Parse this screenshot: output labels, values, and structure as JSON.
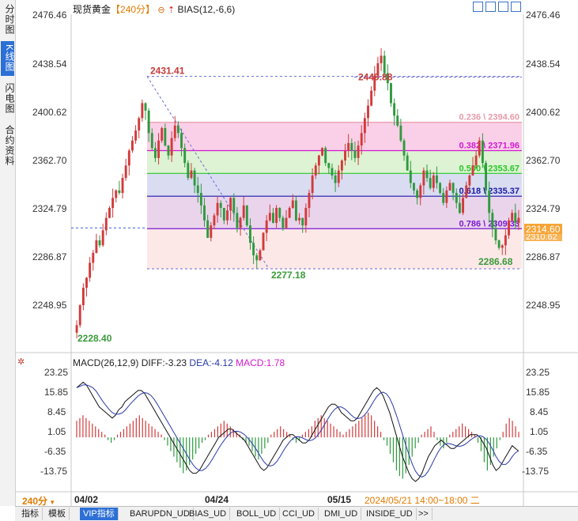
{
  "sidebar": {
    "tabs": [
      {
        "label": "分时图",
        "active": false
      },
      {
        "label": "K线图",
        "active": true
      },
      {
        "label": "闪电图",
        "active": false
      },
      {
        "label": "合约资料",
        "active": false
      }
    ]
  },
  "header": {
    "instrument": "现货黄金",
    "period": "【240分】",
    "indicator": "BIAS(12,-6,6)"
  },
  "price_axis_labels": [
    "2476.46",
    "2438.54",
    "2400.62",
    "2362.70",
    "2324.79",
    "2286.87",
    "2248.95"
  ],
  "price_tags": {
    "last": "2314.60",
    "prev": "2310.62"
  },
  "macd_header": {
    "name": "MACD(26,12,9)",
    "diff": "DIFF:-3.23",
    "dea": "DEA:-4.12",
    "macd": "MACD:1.78"
  },
  "macd_axis_labels": [
    "23.25",
    "15.85",
    "8.45",
    "1.05",
    "-6.35",
    "-13.75"
  ],
  "date_axis": {
    "period_tag": "240分",
    "labels": [
      "04/02",
      "04/24",
      "05/15"
    ],
    "cursor": "2024/05/21 14:00~18:00 二"
  },
  "bottom_tabs": [
    {
      "label": "指标",
      "active": false
    },
    {
      "label": "模板",
      "active": false
    },
    {
      "label": "VIP指标",
      "active": true
    },
    {
      "label": "BARUPDN_UD",
      "active": false
    },
    {
      "label": "BIAS_UD",
      "active": false
    },
    {
      "label": "BOLL_UD",
      "active": false
    },
    {
      "label": "CCI_UD",
      "active": false
    },
    {
      "label": "DMI_UD",
      "active": false
    },
    {
      "label": "INSIDE_UD",
      "active": false
    },
    {
      "label": ">>",
      "active": false
    }
  ],
  "chart_data": {
    "type": "candlestick",
    "price_range": [
      2210,
      2480
    ],
    "annotations": {
      "high_label": "2449.88",
      "prev_high_label": "2431.41",
      "low_label": "2277.18",
      "start_label": "2228.40",
      "recent_low_label": "2286.68"
    },
    "fibonacci": [
      {
        "label": "0.236 \\ 2394.60",
        "value": 2394.6,
        "color": "#e89aa8",
        "fill": "#f9c8e4"
      },
      {
        "label": "0.382 \\ 2371.96",
        "value": 2371.96,
        "color": "#d21ad2",
        "fill": "#d8f0cc"
      },
      {
        "label": "0.500 \\ 2353.67",
        "value": 2353.67,
        "color": "#28c828",
        "fill": "#d4d6f0"
      },
      {
        "label": "0.618 \\ 2335.37",
        "value": 2335.37,
        "color": "#1a1aa8",
        "fill": "#e6cce8"
      },
      {
        "label": "0.786 \\ 2309.33",
        "value": 2309.33,
        "color": "#7a1ad6",
        "fill": "#fde4e4"
      }
    ],
    "fib_top": 2431.41,
    "fib_bottom": 2277.18,
    "close_series": [
      2232,
      2248,
      2262,
      2270,
      2282,
      2290,
      2300,
      2296,
      2308,
      2318,
      2326,
      2334,
      2340,
      2338,
      2350,
      2360,
      2372,
      2380,
      2388,
      2398,
      2410,
      2404,
      2386,
      2374,
      2366,
      2380,
      2390,
      2376,
      2368,
      2382,
      2392,
      2386,
      2374,
      2362,
      2350,
      2356,
      2344,
      2338,
      2328,
      2316,
      2302,
      2312,
      2320,
      2330,
      2326,
      2316,
      2324,
      2334,
      2322,
      2310,
      2318,
      2328,
      2312,
      2298,
      2288,
      2284,
      2292,
      2306,
      2316,
      2322,
      2314,
      2326,
      2318,
      2310,
      2318,
      2326,
      2332,
      2316,
      2318,
      2312,
      2326,
      2338,
      2352,
      2360,
      2368,
      2374,
      2362,
      2358,
      2352,
      2346,
      2356,
      2364,
      2372,
      2378,
      2372,
      2366,
      2376,
      2386,
      2398,
      2408,
      2420,
      2432,
      2442,
      2448,
      2434,
      2426,
      2410,
      2400,
      2392,
      2380,
      2368,
      2356,
      2346,
      2340,
      2334,
      2344,
      2356,
      2350,
      2342,
      2352,
      2346,
      2338,
      2330,
      2340,
      2346,
      2338,
      2330,
      2322,
      2334,
      2344,
      2352,
      2360,
      2368,
      2380,
      2362,
      2340,
      2322,
      2310,
      2300,
      2294,
      2296,
      2304,
      2316,
      2322,
      2314,
      2318
    ]
  },
  "macd_data": {
    "type": "histogram",
    "range": [
      -18,
      25
    ],
    "hist": [
      6,
      7,
      8,
      7,
      6,
      5,
      4,
      3,
      2,
      1,
      -1,
      -2,
      -1,
      1,
      2,
      3,
      4,
      5,
      6,
      7,
      8,
      7,
      6,
      5,
      4,
      3,
      2,
      1,
      -1,
      -3,
      -5,
      -7,
      -9,
      -11,
      -13,
      -12,
      -10,
      -8,
      -6,
      -4,
      -2,
      -1,
      1,
      2,
      3,
      4,
      5,
      6,
      5,
      4,
      3,
      2,
      1,
      -1,
      -2,
      -3,
      -5,
      -7,
      -8,
      -6,
      -4,
      -2,
      1,
      2,
      3,
      4,
      3,
      2,
      1,
      -1,
      -2,
      -1,
      1,
      2,
      3,
      4,
      6,
      7,
      8,
      7,
      6,
      5,
      4,
      3,
      2,
      1,
      2,
      3,
      4,
      5,
      6,
      7,
      8,
      9,
      8,
      6,
      4,
      2,
      -1,
      -3,
      -6,
      -9,
      -12,
      -14,
      -15,
      -13,
      -10,
      -7,
      -4,
      -2,
      1,
      2,
      3,
      4,
      2,
      -1,
      -3,
      -4,
      -2,
      1,
      2,
      3,
      4,
      5,
      4,
      3,
      2,
      1,
      -2,
      -5,
      -9,
      -12,
      -10,
      -7,
      -4,
      -1,
      2,
      5,
      7,
      6,
      4,
      2
    ],
    "diff": [
      18,
      19,
      20,
      19,
      17,
      15,
      13,
      11,
      10,
      9,
      8,
      7,
      8,
      10,
      11,
      13,
      14,
      15,
      16,
      17,
      17,
      16,
      14,
      12,
      10,
      8,
      6,
      4,
      2,
      0,
      -2,
      -4,
      -6,
      -8,
      -10,
      -12,
      -13,
      -13,
      -12,
      -10,
      -8,
      -6,
      -4,
      -2,
      0,
      1,
      2,
      3,
      3,
      2,
      1,
      0,
      -1,
      -3,
      -5,
      -7,
      -9,
      -11,
      -12,
      -11,
      -9,
      -7,
      -5,
      -3,
      -1,
      0,
      1,
      1,
      0,
      -1,
      -2,
      -2,
      -1,
      1,
      3,
      5,
      7,
      9,
      11,
      12,
      12,
      11,
      9,
      8,
      7,
      6,
      6,
      7,
      9,
      11,
      13,
      15,
      17,
      18,
      17,
      15,
      12,
      9,
      5,
      1,
      -3,
      -7,
      -10,
      -13,
      -15,
      -16,
      -15,
      -13,
      -10,
      -7,
      -5,
      -3,
      -2,
      -1,
      -2,
      -3,
      -4,
      -4,
      -3,
      -2,
      -1,
      0,
      1,
      1,
      1,
      0,
      -2,
      -4,
      -7,
      -10,
      -12,
      -11,
      -9,
      -7,
      -5,
      -3,
      -4,
      -5
    ]
  }
}
